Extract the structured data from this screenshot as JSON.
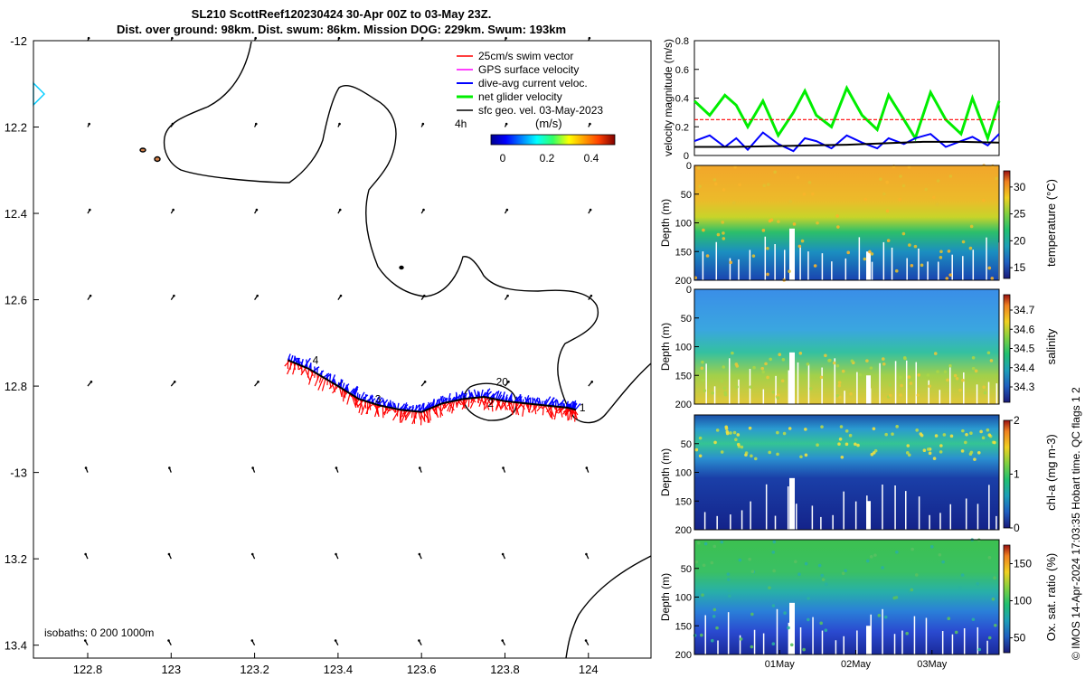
{
  "title": {
    "line1": "SL210 ScottReef120230424 30-Apr 00Z to 03-May 23Z.",
    "line2": "Dist. over ground: 98km. Dist. swum: 86km. Mission DOG: 229km. Swum: 193km"
  },
  "credit": "© IMOS 14-Apr-2024 17:03:35 Hobart time. QC flags 1  2",
  "colors": {
    "swim": "#ff0000",
    "gps": "#ff00ff",
    "current": "#0000ff",
    "net": "#00ee00",
    "sfc": "#000000",
    "contour": "#000000"
  },
  "chart_data": [
    {
      "type": "scatter",
      "name": "glider-track-map",
      "xlim": [
        122.67,
        124.15
      ],
      "ylim": [
        -13.43,
        -12.0
      ],
      "x_ticks": [
        122.8,
        123,
        123.2,
        123.4,
        123.6,
        123.8,
        124
      ],
      "x_tick_labels": [
        "122.8",
        "123",
        "123.2",
        "123.4",
        "123.6",
        "123.8",
        "124"
      ],
      "y_ticks": [
        -12,
        -12.2,
        -12.4,
        -12.6,
        -12.8,
        -13,
        -13.2,
        -13.4
      ],
      "y_tick_labels": [
        "-12",
        "12.2",
        "12.4",
        "12.6",
        "12.8",
        "-13",
        "13.2",
        "13.4"
      ],
      "legend": [
        "25cm/s swim vector",
        "GPS surface velocity",
        "dive-avg current veloc.",
        "net glider velocity",
        "sfc geo. vel. 03-May-2023"
      ],
      "legend_hours": "4h",
      "colorbar": {
        "label": "(m/s)",
        "ticks": [
          0,
          0.2,
          0.4
        ],
        "tick_labels": [
          "0",
          "0.2",
          "0.4"
        ],
        "range": [
          0,
          0.5
        ]
      },
      "isobaths_label": "isobaths: 0   200  1000m",
      "track": {
        "lon": [
          123.28,
          123.33,
          123.4,
          123.45,
          123.5,
          123.55,
          123.6,
          123.65,
          123.7,
          123.75,
          123.8,
          123.85,
          123.9,
          123.95,
          123.97
        ],
        "lat": [
          -12.74,
          -12.76,
          -12.8,
          -12.83,
          -12.845,
          -12.855,
          -12.86,
          -12.84,
          -12.83,
          -12.825,
          -12.835,
          -12.84,
          -12.845,
          -12.85,
          -12.855
        ]
      },
      "annotations": [
        {
          "text": "4",
          "lon": 123.33,
          "lat": -12.74
        },
        {
          "text": "3",
          "lon": 123.48,
          "lat": -12.83
        },
        {
          "text": "2",
          "lon": 123.75,
          "lat": -12.84
        },
        {
          "text": "20",
          "lon": 123.77,
          "lat": -12.79
        },
        {
          "text": "1",
          "lon": 123.97,
          "lat": -12.85
        }
      ]
    },
    {
      "type": "line",
      "name": "velocity-magnitude",
      "ylabel": "velocity magnitude (m/s)",
      "ylim": [
        0,
        0.8
      ],
      "y_ticks": [
        0,
        0.2,
        0.4,
        0.6,
        0.8
      ],
      "y_tick_labels": [
        "0",
        "0.2",
        "0.4",
        "0.6",
        "0.8"
      ],
      "x_range_days": [
        0,
        4
      ],
      "series": [
        {
          "name": "net glider velocity",
          "color": "#00ee00",
          "x": [
            0,
            0.2,
            0.4,
            0.55,
            0.7,
            0.9,
            1.1,
            1.3,
            1.45,
            1.6,
            1.8,
            2.0,
            2.2,
            2.4,
            2.55,
            2.75,
            2.9,
            3.1,
            3.3,
            3.5,
            3.65,
            3.85,
            4.0
          ],
          "values": [
            0.38,
            0.28,
            0.42,
            0.35,
            0.2,
            0.38,
            0.14,
            0.3,
            0.45,
            0.28,
            0.2,
            0.47,
            0.28,
            0.18,
            0.42,
            0.25,
            0.12,
            0.44,
            0.25,
            0.15,
            0.4,
            0.12,
            0.38
          ]
        },
        {
          "name": "dive-avg current veloc.",
          "color": "#0000ff",
          "x": [
            0,
            0.2,
            0.4,
            0.55,
            0.7,
            0.9,
            1.1,
            1.3,
            1.45,
            1.6,
            1.8,
            2.0,
            2.2,
            2.4,
            2.55,
            2.75,
            2.9,
            3.1,
            3.3,
            3.5,
            3.65,
            3.85,
            4.0
          ],
          "values": [
            0.1,
            0.14,
            0.06,
            0.12,
            0.04,
            0.16,
            0.08,
            0.03,
            0.12,
            0.1,
            0.05,
            0.14,
            0.09,
            0.05,
            0.12,
            0.08,
            0.12,
            0.15,
            0.06,
            0.1,
            0.13,
            0.07,
            0.15
          ]
        },
        {
          "name": "sfc geo. vel.",
          "color": "#000000",
          "x": [
            0,
            0.5,
            1.0,
            1.5,
            2.0,
            2.5,
            3.0,
            3.5,
            4.0
          ],
          "values": [
            0.06,
            0.06,
            0.065,
            0.07,
            0.075,
            0.085,
            0.095,
            0.095,
            0.09
          ]
        },
        {
          "name": "25cm/s swim vector",
          "color": "#ff0000",
          "x": [
            0,
            4
          ],
          "values": [
            0.25,
            0.25
          ]
        }
      ]
    },
    {
      "type": "heatmap",
      "name": "temperature-section",
      "ylabel": "Depth (m)",
      "cbar_label": "temperature (°C)",
      "ylim": [
        200,
        0
      ],
      "y_ticks": [
        0,
        50,
        100,
        150,
        200
      ],
      "y_tick_labels": [
        "0",
        "50",
        "100",
        "150",
        "200"
      ],
      "clim": [
        13,
        33
      ],
      "cbar_ticks": [
        15,
        20,
        25,
        30
      ],
      "cbar_tick_labels": [
        "15",
        "20",
        "25",
        "30"
      ]
    },
    {
      "type": "heatmap",
      "name": "salinity-section",
      "ylabel": "Depth (m)",
      "cbar_label": "salinity",
      "ylim": [
        200,
        0
      ],
      "y_ticks": [
        0,
        50,
        100,
        150,
        200
      ],
      "y_tick_labels": [
        "0",
        "50",
        "100",
        "150",
        "200"
      ],
      "clim": [
        34.22,
        34.78
      ],
      "cbar_ticks": [
        34.3,
        34.4,
        34.5,
        34.6,
        34.7
      ],
      "cbar_tick_labels": [
        "34.3",
        "34.4",
        "34.5",
        "34.6",
        "34.7"
      ]
    },
    {
      "type": "heatmap",
      "name": "chla-section",
      "ylabel": "Depth (m)",
      "cbar_label": "chl-a (mg m-3)",
      "ylim": [
        200,
        0
      ],
      "y_ticks": [
        50,
        100,
        150,
        200
      ],
      "y_tick_labels": [
        "50",
        "100",
        "150",
        "200"
      ],
      "clim": [
        0,
        2
      ],
      "cbar_ticks": [
        0,
        1,
        2
      ],
      "cbar_tick_labels": [
        "0",
        "1",
        "2"
      ]
    },
    {
      "type": "heatmap",
      "name": "oxygen-section",
      "ylabel": "Depth (m)",
      "cbar_label": "Ox. sat. ratio (%)",
      "ylim": [
        200,
        0
      ],
      "y_ticks": [
        50,
        100,
        150,
        200
      ],
      "y_tick_labels": [
        "50",
        "100",
        "150",
        "200"
      ],
      "clim": [
        30,
        175
      ],
      "cbar_ticks": [
        50,
        100,
        150
      ],
      "cbar_tick_labels": [
        "50",
        "100",
        "150"
      ],
      "x_ticks": [
        1,
        2,
        3
      ],
      "x_tick_labels": [
        "01May",
        "02May",
        "03May"
      ]
    }
  ]
}
